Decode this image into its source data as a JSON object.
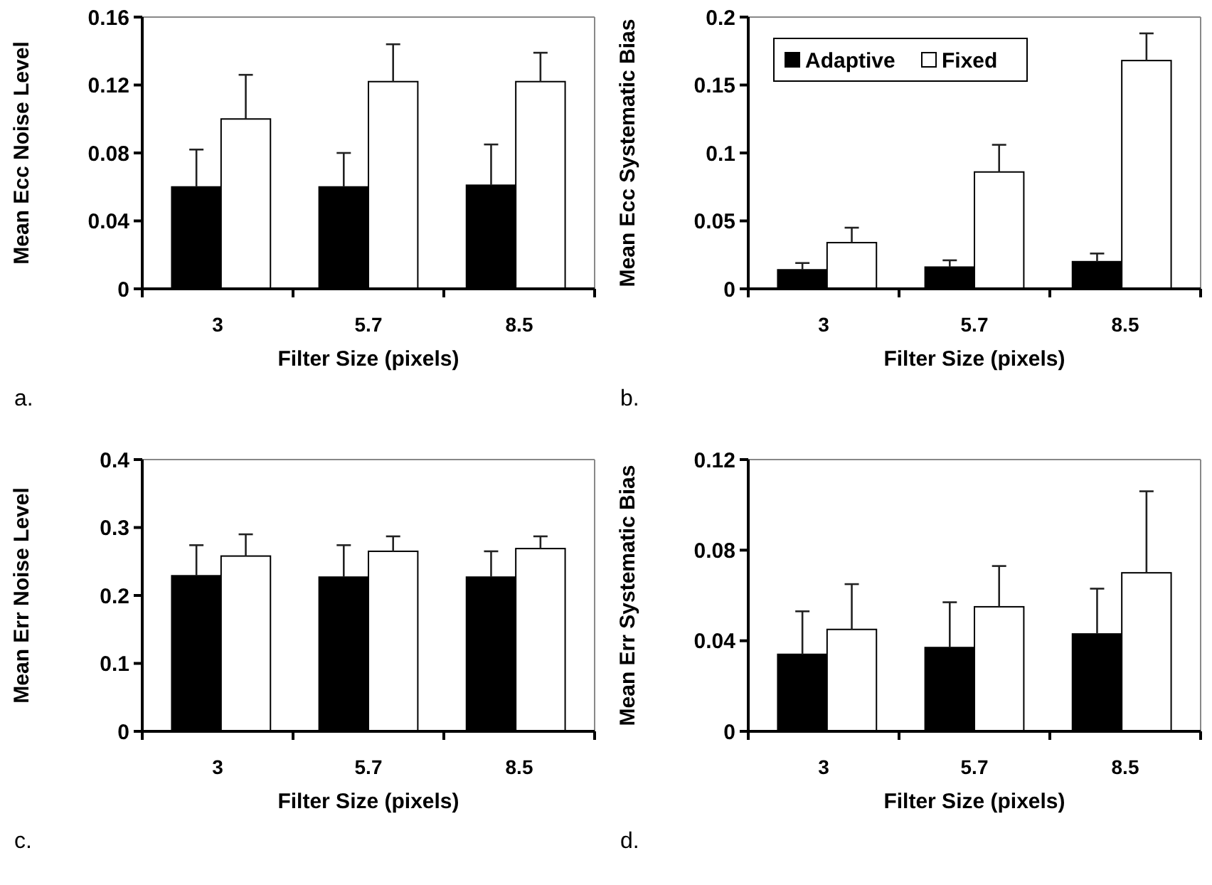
{
  "chart_data": [
    {
      "type": "bar",
      "categories": [
        "3",
        "5.7",
        "8.5"
      ],
      "xlabel": "Filter Size (pixels)",
      "ylabel": "Mean Ecc Noise Level",
      "ylim": [
        0,
        0.16
      ],
      "yticks": [
        0,
        0.04,
        0.08,
        0.12,
        0.16
      ],
      "grid": false,
      "legend": false,
      "annotations": [
        "a."
      ],
      "series": [
        {
          "color": "#000000",
          "values": [
            0.06,
            0.06,
            0.061
          ],
          "errors": [
            [
              0.06,
              0.082
            ],
            [
              0.06,
              0.08
            ],
            [
              0.061,
              0.085
            ]
          ]
        },
        {
          "color": "#ffffff",
          "values": [
            0.1,
            0.122,
            0.122
          ],
          "errors": [
            [
              0.1,
              0.126
            ],
            [
              0.122,
              0.144
            ],
            [
              0.122,
              0.139
            ]
          ]
        }
      ]
    },
    {
      "type": "bar",
      "categories": [
        "3",
        "5.7",
        "8.5"
      ],
      "xlabel": "Filter Size (pixels)",
      "ylabel": "Mean Ecc Systematic Bias",
      "ylim": [
        0,
        0.2
      ],
      "yticks": [
        0,
        0.05,
        0.1,
        0.15,
        0.2
      ],
      "grid": false,
      "legend": "top left",
      "annotations": [
        "b."
      ],
      "series": [
        {
          "name": "Adaptive",
          "color": "#000000",
          "values": [
            0.014,
            0.016,
            0.02
          ],
          "errors": [
            [
              0.014,
              0.019
            ],
            [
              0.016,
              0.021
            ],
            [
              0.02,
              0.026
            ]
          ]
        },
        {
          "name": "Fixed",
          "color": "#ffffff",
          "values": [
            0.034,
            0.086,
            0.168
          ],
          "errors": [
            [
              0.034,
              0.045
            ],
            [
              0.086,
              0.106
            ],
            [
              0.168,
              0.188
            ]
          ]
        }
      ]
    },
    {
      "type": "bar",
      "categories": [
        "3",
        "5.7",
        "8.5"
      ],
      "xlabel": "Filter Size (pixels)",
      "ylabel": "Mean Err Noise Level",
      "ylim": [
        0,
        0.4
      ],
      "yticks": [
        0,
        0.1,
        0.2,
        0.3,
        0.4
      ],
      "grid": false,
      "legend": false,
      "annotations": [
        "c."
      ],
      "series": [
        {
          "color": "#000000",
          "values": [
            0.229,
            0.227,
            0.227
          ],
          "errors": [
            [
              0.229,
              0.274
            ],
            [
              0.227,
              0.274
            ],
            [
              0.227,
              0.265
            ]
          ]
        },
        {
          "color": "#ffffff",
          "values": [
            0.258,
            0.265,
            0.269
          ],
          "errors": [
            [
              0.258,
              0.29
            ],
            [
              0.265,
              0.287
            ],
            [
              0.269,
              0.287
            ]
          ]
        }
      ]
    },
    {
      "type": "bar",
      "categories": [
        "3",
        "5.7",
        "8.5"
      ],
      "xlabel": "Filter Size (pixels)",
      "ylabel": "Mean Err Systematic Bias",
      "ylim": [
        0,
        0.12
      ],
      "yticks": [
        0,
        0.04,
        0.08,
        0.12
      ],
      "grid": false,
      "legend": false,
      "annotations": [
        "d."
      ],
      "series": [
        {
          "color": "#000000",
          "values": [
            0.034,
            0.037,
            0.043
          ],
          "errors": [
            [
              0.034,
              0.053
            ],
            [
              0.037,
              0.057
            ],
            [
              0.043,
              0.063
            ]
          ]
        },
        {
          "color": "#ffffff",
          "values": [
            0.045,
            0.055,
            0.07
          ],
          "errors": [
            [
              0.045,
              0.065
            ],
            [
              0.055,
              0.073
            ],
            [
              0.07,
              0.106
            ]
          ]
        }
      ]
    }
  ]
}
